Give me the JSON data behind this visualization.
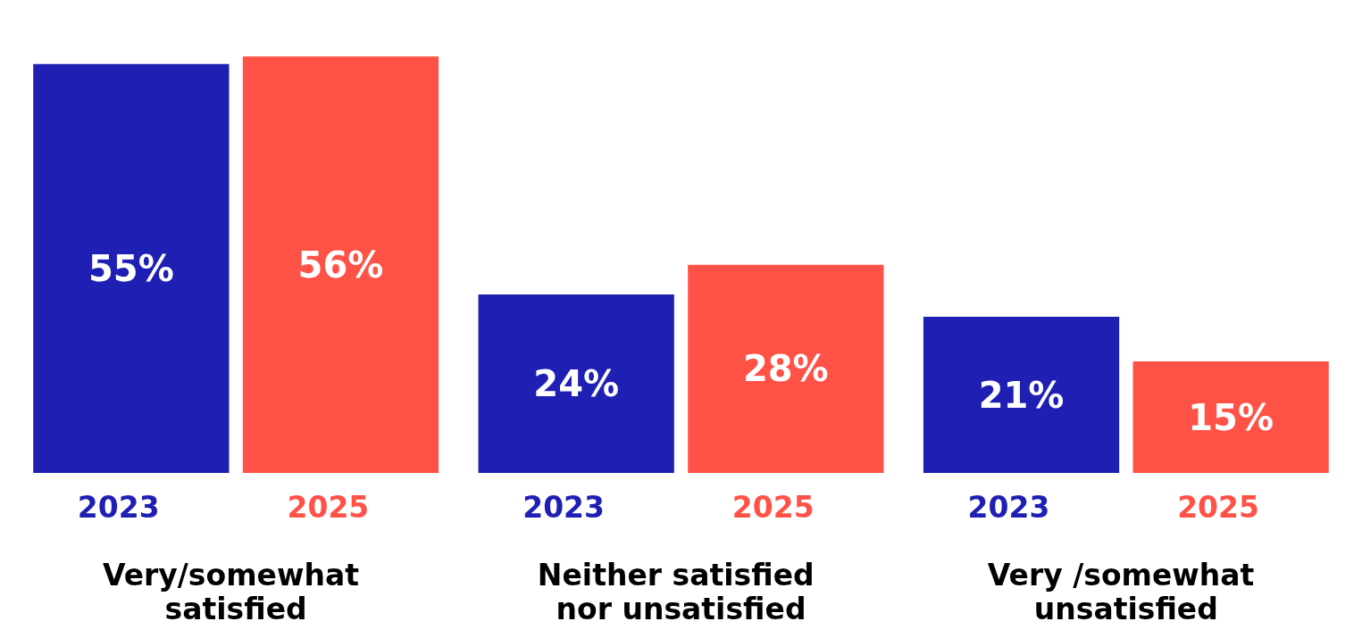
{
  "chart_data": {
    "type": "bar",
    "categories": [
      "Very/somewhat satisfied",
      "Neither satisfied nor unsatisfied",
      "Very /somewhat unsatisfied"
    ],
    "series": [
      {
        "name": "2023",
        "color": "#1f1fb4",
        "values": [
          55,
          24,
          21
        ],
        "value_labels": [
          "55%",
          "24%",
          "21%"
        ]
      },
      {
        "name": "2025",
        "color": "#ff5247",
        "values": [
          56,
          28,
          15
        ],
        "value_labels": [
          "56%",
          "28%",
          "15%"
        ]
      }
    ],
    "grid": false,
    "legend": false
  }
}
